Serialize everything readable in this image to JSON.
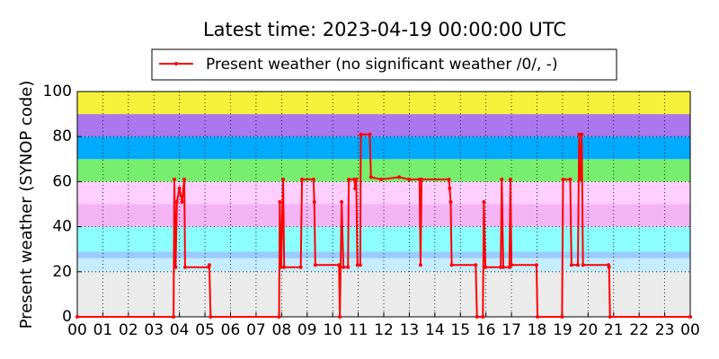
{
  "chart_data": {
    "type": "line",
    "title": "Latest time: 2023-04-19 00:00:00 UTC",
    "y_label": "Present weather (SYNOP code)",
    "legend": "top",
    "grid": true,
    "xlim": [
      0,
      24
    ],
    "ylim": [
      0,
      100
    ],
    "yticks": [
      0,
      20,
      40,
      60,
      80,
      100
    ],
    "xticks": [
      {
        "value": 0,
        "label": "00"
      },
      {
        "value": 1,
        "label": "01"
      },
      {
        "value": 2,
        "label": "02"
      },
      {
        "value": 3,
        "label": "03"
      },
      {
        "value": 4,
        "label": "04"
      },
      {
        "value": 5,
        "label": "05"
      },
      {
        "value": 6,
        "label": "06"
      },
      {
        "value": 7,
        "label": "07"
      },
      {
        "value": 8,
        "label": "08"
      },
      {
        "value": 9,
        "label": "09"
      },
      {
        "value": 10,
        "label": "10"
      },
      {
        "value": 11,
        "label": "11"
      },
      {
        "value": 12,
        "label": "12"
      },
      {
        "value": 13,
        "label": "13"
      },
      {
        "value": 14,
        "label": "14"
      },
      {
        "value": 15,
        "label": "15"
      },
      {
        "value": 16,
        "label": "16"
      },
      {
        "value": 17,
        "label": "17"
      },
      {
        "value": 18,
        "label": "18"
      },
      {
        "value": 19,
        "label": "19"
      },
      {
        "value": 20,
        "label": "20"
      },
      {
        "value": 21,
        "label": "21"
      },
      {
        "value": 22,
        "label": "22"
      },
      {
        "value": 23,
        "label": "23"
      },
      {
        "value": 24,
        "label": "00"
      }
    ],
    "bands": [
      {
        "from": 0,
        "to": 20,
        "color": "#ebebeb"
      },
      {
        "from": 20,
        "to": 26,
        "color": "#c6ecff"
      },
      {
        "from": 26,
        "to": 29,
        "color": "#99ccff"
      },
      {
        "from": 29,
        "to": 40,
        "color": "#8cffff"
      },
      {
        "from": 40,
        "to": 50,
        "color": "#f4b4f4"
      },
      {
        "from": 50,
        "to": 60,
        "color": "#ffd0ff"
      },
      {
        "from": 60,
        "to": 70,
        "color": "#77ee6e"
      },
      {
        "from": 70,
        "to": 80,
        "color": "#00aaff"
      },
      {
        "from": 80,
        "to": 90,
        "color": "#aa77ee"
      },
      {
        "from": 90,
        "to": 100,
        "color": "#f5f03a"
      }
    ],
    "x": [
      0,
      3.77,
      3.8,
      3.85,
      3.9,
      4.0,
      4.1,
      4.19,
      4.22,
      5.15,
      5.17,
      5.22,
      7.9,
      7.93,
      7.98,
      8.06,
      8.1,
      8.75,
      8.8,
      9.25,
      9.28,
      9.32,
      10.25,
      10.28,
      10.35,
      10.42,
      10.6,
      10.63,
      10.85,
      10.88,
      10.92,
      10.97,
      11.08,
      11.1,
      11.45,
      11.5,
      11.9,
      12.6,
      13.0,
      13.4,
      13.44,
      13.48,
      14.55,
      14.58,
      14.62,
      14.66,
      15.6,
      15.65,
      15.88,
      15.92,
      15.98,
      16.58,
      16.62,
      16.68,
      16.92,
      16.96,
      17.0,
      17.98,
      18.02,
      18.98,
      19.02,
      19.3,
      19.35,
      19.6,
      19.65,
      19.7,
      19.75,
      19.8,
      20.8,
      20.82,
      20.86,
      24
    ],
    "series": [
      {
        "name": "Present weather (no significant weather /0/, -)",
        "color": "#ff0000",
        "values": [
          0,
          0,
          61,
          22,
          51,
          57,
          51,
          61,
          22,
          22,
          23,
          0,
          0,
          51,
          22,
          61,
          22,
          22,
          61,
          61,
          51,
          23,
          23,
          0,
          51,
          22,
          22,
          61,
          61,
          57,
          61,
          23,
          23,
          81,
          81,
          62,
          61,
          62,
          61,
          61,
          23,
          61,
          61,
          57,
          51,
          23,
          23,
          0,
          0,
          51,
          22,
          22,
          61,
          22,
          22,
          61,
          23,
          23,
          0,
          0,
          61,
          61,
          23,
          23,
          81,
          61,
          81,
          23,
          23,
          22,
          0,
          0
        ]
      }
    ]
  }
}
